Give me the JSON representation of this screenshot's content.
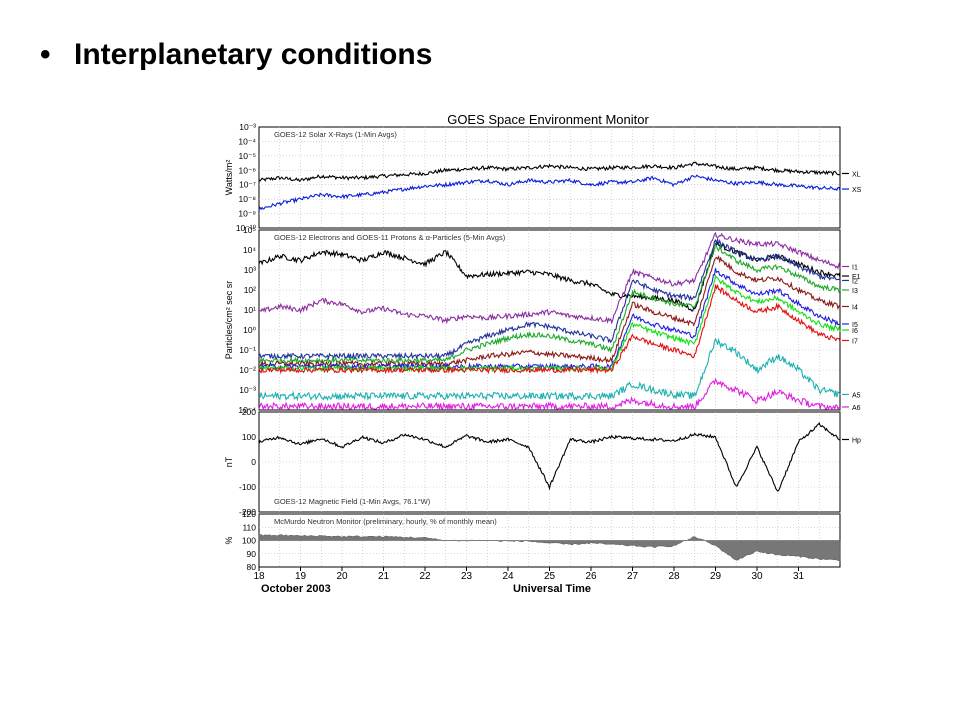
{
  "slide": {
    "bullet": "•",
    "title": "Interplanetary conditions"
  },
  "chart_data": [
    {
      "type": "line",
      "title": "GOES Space Environment Monitor",
      "subtitle": "GOES-12 Solar X-Rays (1-Min Avgs)",
      "ylabel": "Watts/m²",
      "yscale": "log",
      "ylim": [
        1e-10,
        0.001
      ],
      "ytick_labels": [
        "10⁻³",
        "10⁻⁴",
        "10⁻⁵",
        "10⁻⁶",
        "10⁻⁷",
        "10⁻⁸",
        "10⁻⁹",
        "10⁻¹⁰"
      ],
      "x": [
        18,
        18.5,
        19,
        19.5,
        20,
        20.5,
        21,
        21.5,
        22,
        22.5,
        23,
        23.5,
        24,
        24.5,
        25,
        25.5,
        26,
        26.5,
        27,
        27.5,
        28,
        28.5,
        29,
        29.5,
        30,
        30.5,
        31,
        31.5,
        32
      ],
      "series": [
        {
          "name": "XL",
          "color": "#000000",
          "values": [
            2e-07,
            3e-07,
            2e-07,
            4e-07,
            3e-07,
            3e-07,
            4e-07,
            5e-07,
            6e-07,
            1e-06,
            1.2e-06,
            1.5e-06,
            1.2e-06,
            1.5e-06,
            2e-06,
            1.5e-06,
            1.2e-06,
            1.5e-06,
            1.6e-06,
            2e-06,
            1.5e-06,
            3e-06,
            1.8e-06,
            1.2e-06,
            1.5e-06,
            1e-06,
            8e-07,
            7e-07,
            6e-07
          ]
        },
        {
          "name": "XS",
          "color": "#0b1fd6",
          "values": [
            2e-09,
            5e-09,
            1e-08,
            2e-08,
            1.5e-08,
            2e-08,
            3e-08,
            5e-08,
            8e-08,
            1e-07,
            1.5e-07,
            2e-07,
            1e-07,
            2e-07,
            1.5e-07,
            2e-07,
            1e-07,
            1.5e-07,
            1.5e-07,
            3e-07,
            1e-07,
            4e-07,
            2e-07,
            1.2e-07,
            1.5e-07,
            1e-07,
            8e-08,
            6e-08,
            5e-08
          ]
        }
      ]
    },
    {
      "type": "line",
      "subtitle": "GOES-12 Electrons and GOES-11 Protons & α-Particles (5-Min Avgs)",
      "ylabel": "Particles/cm² sec sr",
      "yscale": "log",
      "ylim": [
        0.0001,
        100000.0
      ],
      "ytick_labels": [
        "10⁵",
        "10⁴",
        "10³",
        "10²",
        "10¹",
        "10⁰",
        "10⁻¹",
        "10⁻²",
        "10⁻³",
        "10⁻⁴"
      ],
      "x": [
        18,
        18.5,
        19,
        19.5,
        20,
        20.5,
        21,
        21.5,
        22,
        22.5,
        23,
        23.5,
        24,
        24.5,
        25,
        25.5,
        26,
        26.5,
        27,
        27.5,
        28,
        28.5,
        29,
        29.5,
        30,
        30.5,
        31,
        31.5,
        32
      ],
      "series": [
        {
          "name": "E1",
          "color": "#000000",
          "values": [
            2000,
            5000,
            3000,
            8000,
            6000,
            3000,
            8000,
            4000,
            2000,
            8000,
            500,
            600,
            700,
            800,
            600,
            300,
            200,
            60,
            50,
            40,
            30,
            10,
            20000.0,
            8000,
            3000,
            5000,
            2000,
            800,
            500
          ]
        },
        {
          "name": "I1",
          "color": "#8b2fa0",
          "values": [
            8,
            15,
            10,
            30,
            20,
            8,
            12,
            6,
            5,
            3,
            5,
            4,
            5,
            6,
            8,
            5,
            4,
            3,
            800,
            400,
            200,
            300,
            60000.0,
            30000.0,
            20000.0,
            20000.0,
            8000,
            3000,
            1500
          ]
        },
        {
          "name": "I2",
          "color": "#22319b",
          "values": [
            0.05,
            0.05,
            0.05,
            0.05,
            0.05,
            0.05,
            0.05,
            0.05,
            0.05,
            0.05,
            0.2,
            0.5,
            1,
            2,
            1.5,
            0.8,
            0.5,
            0.3,
            300,
            100,
            50,
            40,
            30000.0,
            8000,
            3000,
            5000,
            1500,
            500,
            300
          ]
        },
        {
          "name": "I3",
          "color": "#1fa82a",
          "values": [
            0.03,
            0.03,
            0.03,
            0.03,
            0.03,
            0.03,
            0.03,
            0.03,
            0.03,
            0.03,
            0.1,
            0.2,
            0.4,
            0.6,
            0.5,
            0.3,
            0.2,
            0.1,
            80,
            40,
            20,
            15,
            15000.0,
            3000,
            1000,
            1500,
            500,
            150,
            100
          ]
        },
        {
          "name": "I4",
          "color": "#8b1a1a",
          "values": [
            0.02,
            0.02,
            0.02,
            0.02,
            0.02,
            0.02,
            0.02,
            0.02,
            0.02,
            0.02,
            0.03,
            0.05,
            0.06,
            0.08,
            0.06,
            0.05,
            0.04,
            0.03,
            20,
            8,
            4,
            2,
            5000,
            800,
            300,
            400,
            100,
            30,
            15
          ]
        },
        {
          "name": "I5",
          "color": "#2020e0",
          "values": [
            0.015,
            0.015,
            0.015,
            0.015,
            0.015,
            0.015,
            0.015,
            0.015,
            0.015,
            0.015,
            0.015,
            0.015,
            0.015,
            0.015,
            0.015,
            0.015,
            0.015,
            0.015,
            5,
            2,
            1,
            0.5,
            1000,
            200,
            60,
            100,
            20,
            5,
            2
          ]
        },
        {
          "name": "I6",
          "color": "#11e011",
          "values": [
            0.012,
            0.012,
            0.012,
            0.012,
            0.012,
            0.012,
            0.012,
            0.012,
            0.012,
            0.012,
            0.012,
            0.012,
            0.012,
            0.012,
            0.012,
            0.012,
            0.012,
            0.012,
            2,
            0.8,
            0.4,
            0.2,
            400,
            80,
            25,
            40,
            8,
            2,
            1
          ]
        },
        {
          "name": "I7",
          "color": "#e01010",
          "values": [
            0.01,
            0.01,
            0.01,
            0.01,
            0.01,
            0.01,
            0.01,
            0.01,
            0.01,
            0.01,
            0.01,
            0.01,
            0.01,
            0.01,
            0.01,
            0.01,
            0.01,
            0.01,
            0.5,
            0.2,
            0.1,
            0.05,
            150,
            30,
            8,
            15,
            3,
            0.6,
            0.3
          ]
        },
        {
          "name": "A5",
          "color": "#1fb0b0",
          "values": [
            0.0005,
            0.0005,
            0.0005,
            0.0005,
            0.0005,
            0.0005,
            0.0005,
            0.0005,
            0.0005,
            0.0005,
            0.0005,
            0.0005,
            0.0005,
            0.0005,
            0.0005,
            0.0005,
            0.0005,
            0.0005,
            0.002,
            0.001,
            0.0006,
            0.0005,
            0.3,
            0.08,
            0.01,
            0.05,
            0.01,
            0.001,
            0.0006
          ]
        },
        {
          "name": "A6",
          "color": "#e020e0",
          "values": [
            0.00015,
            0.00015,
            0.00015,
            0.00015,
            0.00015,
            0.00015,
            0.00015,
            0.00015,
            0.00015,
            0.00015,
            0.00015,
            0.00015,
            0.00015,
            0.00015,
            0.00015,
            0.00015,
            0.00015,
            0.00015,
            0.0003,
            0.0002,
            0.00015,
            0.00015,
            0.003,
            0.001,
            0.0003,
            0.0008,
            0.0003,
            0.00015,
            0.00012
          ]
        }
      ]
    },
    {
      "type": "line",
      "subtitle": "GOES-12 Magnetic Field (1-Min Avgs, 76.1°W)",
      "ylabel": "nT",
      "ylim": [
        -200,
        200
      ],
      "ytick_labels": [
        "200",
        "100",
        "0",
        "-100",
        "-200"
      ],
      "x": [
        18,
        18.5,
        19,
        19.5,
        20,
        20.5,
        21,
        21.5,
        22,
        22.5,
        23,
        23.5,
        24,
        24.5,
        25,
        25.5,
        26,
        26.5,
        27,
        27.5,
        28,
        28.5,
        29,
        29.5,
        30,
        30.5,
        31,
        31.5,
        32
      ],
      "series": [
        {
          "name": "Hp",
          "color": "#000000",
          "values": [
            80,
            100,
            70,
            95,
            60,
            100,
            75,
            110,
            90,
            60,
            105,
            80,
            90,
            60,
            -100,
            90,
            80,
            100,
            95,
            90,
            85,
            110,
            100,
            -100,
            60,
            -120,
            80,
            150,
            90
          ]
        }
      ]
    },
    {
      "type": "area",
      "subtitle": "McMurdo Neutron Monitor (preliminary, hourly, % of monthly mean)",
      "ylabel": "%",
      "ylim": [
        80,
        120
      ],
      "ytick_labels": [
        "120",
        "110",
        "100",
        "90",
        "80"
      ],
      "baseline": 100,
      "x": [
        18,
        18.5,
        19,
        19.5,
        20,
        20.5,
        21,
        21.5,
        22,
        22.5,
        23,
        23.5,
        24,
        24.5,
        25,
        25.5,
        26,
        26.5,
        27,
        27.5,
        28,
        28.5,
        29,
        29.5,
        30,
        30.5,
        31,
        31.5,
        32
      ],
      "series": [
        {
          "name": "McMurdo",
          "color": "#777777",
          "values": [
            104,
            104,
            103.5,
            103.5,
            103,
            103,
            103,
            102.5,
            102,
            100,
            100,
            100,
            99.5,
            99.5,
            98,
            97,
            98,
            97,
            96,
            95,
            96,
            103,
            96,
            85,
            92,
            89,
            88,
            86,
            85
          ]
        }
      ]
    }
  ],
  "x_axis": {
    "tick_labels": [
      "18",
      "19",
      "20",
      "21",
      "22",
      "23",
      "24",
      "25",
      "26",
      "27",
      "28",
      "29",
      "30",
      "31"
    ],
    "month_label": "October 2003",
    "xlabel": "Universal Time"
  }
}
